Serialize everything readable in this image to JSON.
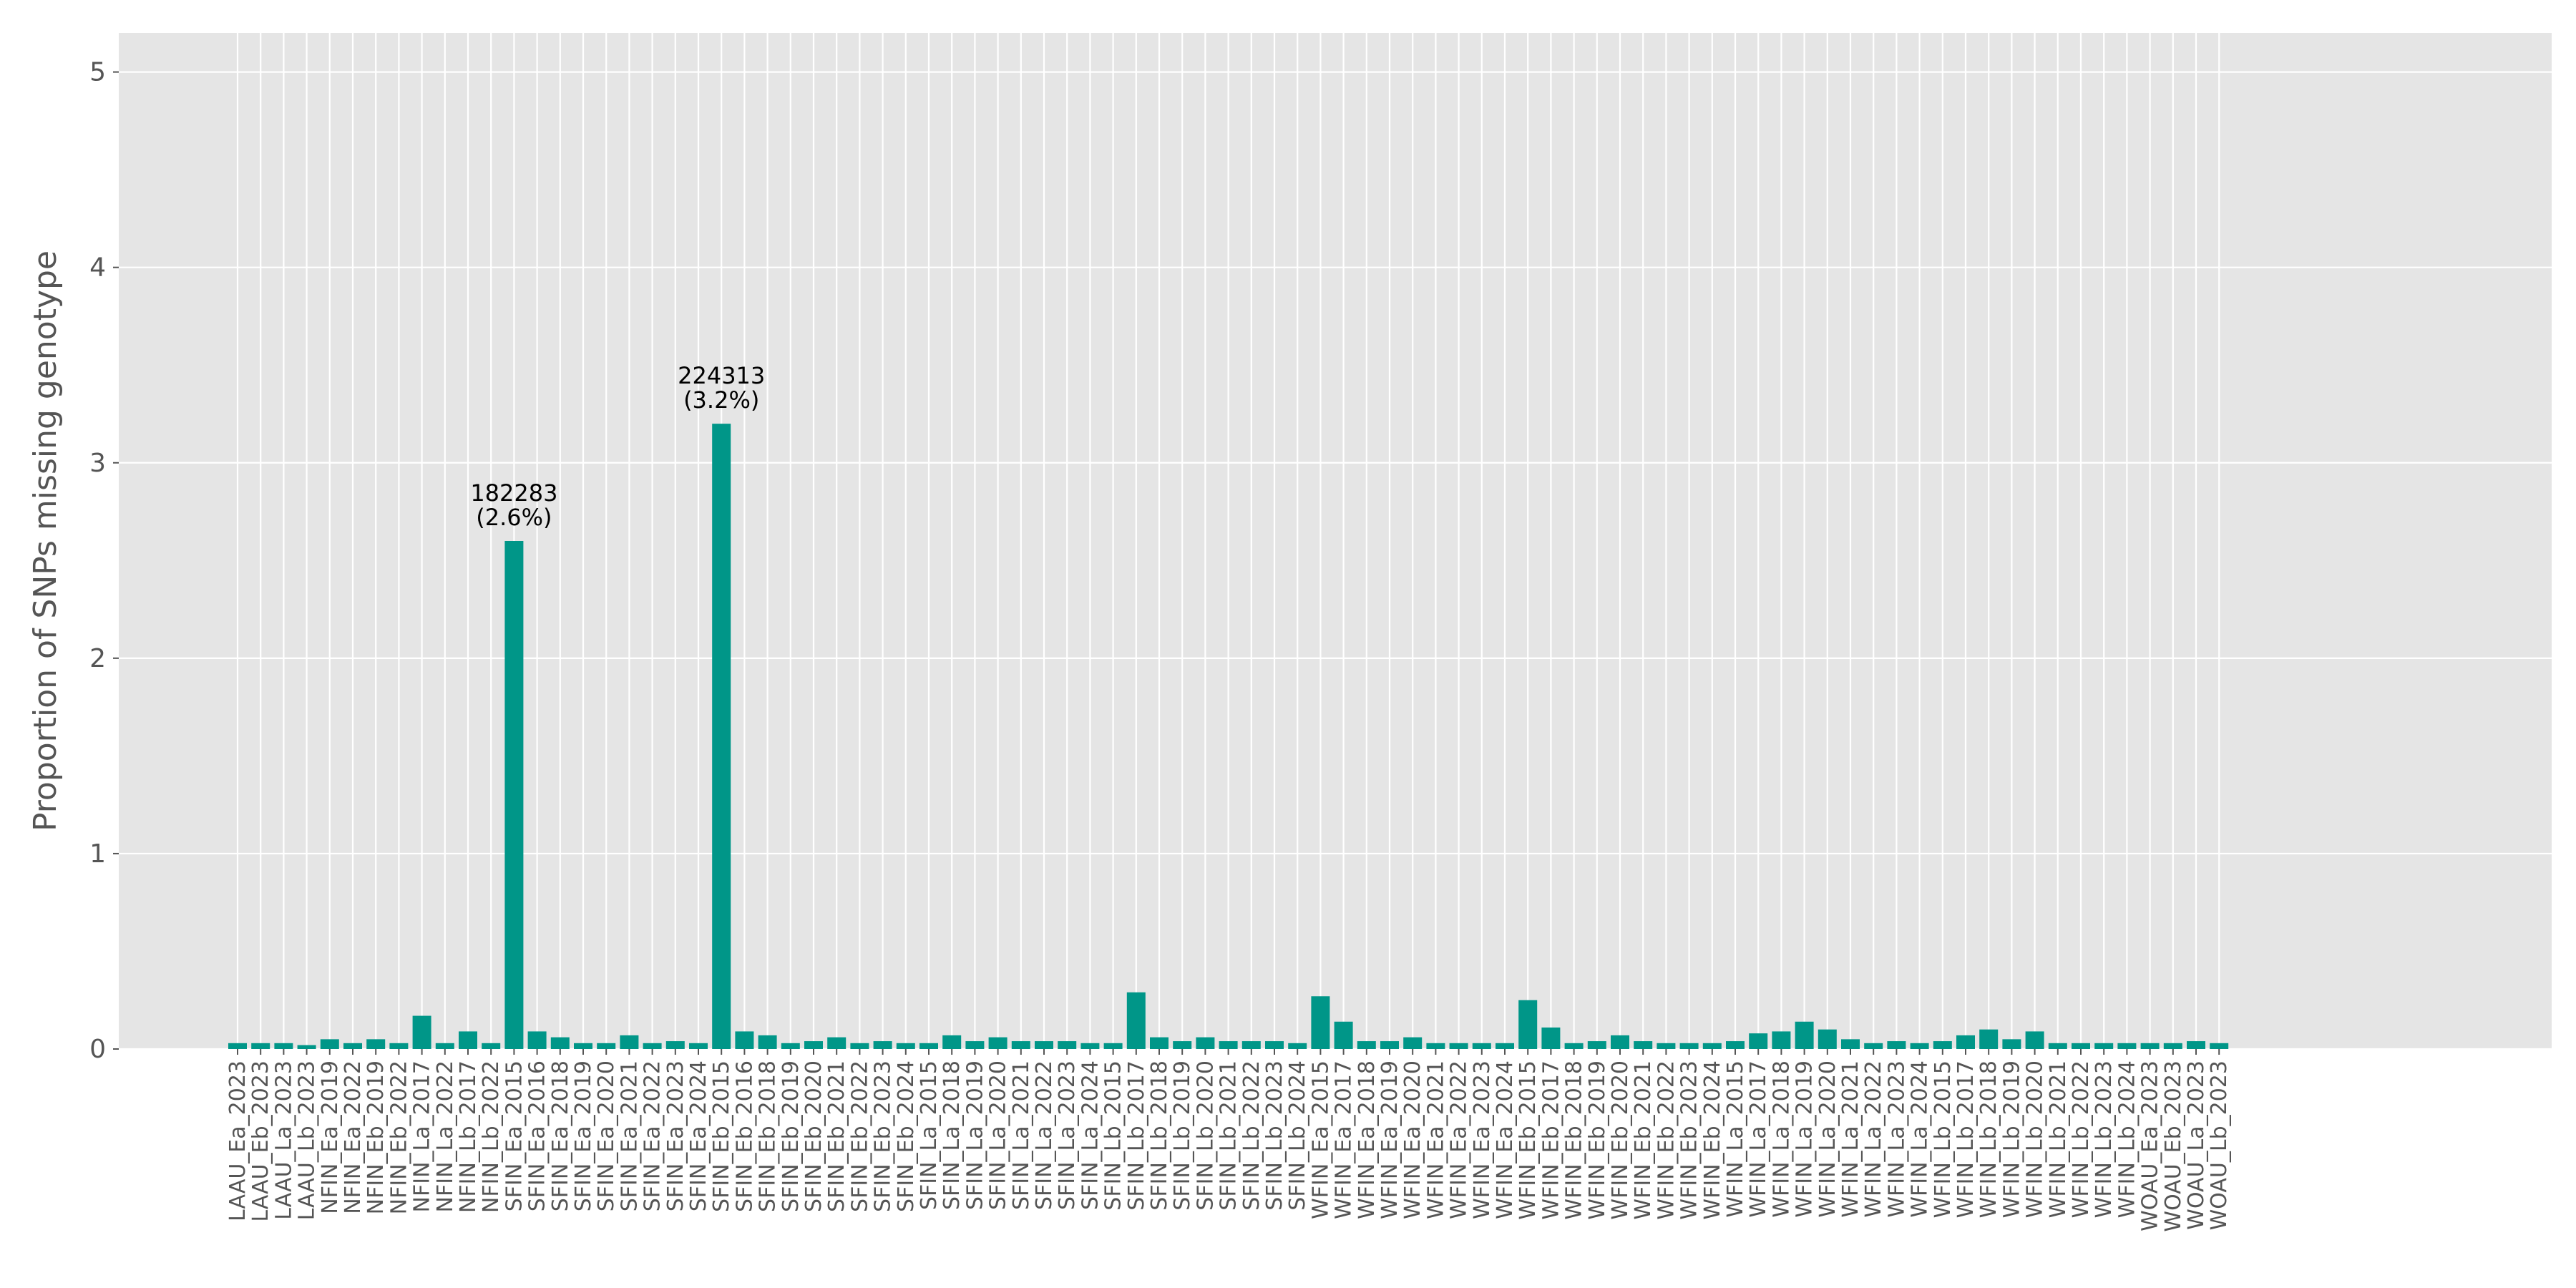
{
  "chart_data": {
    "type": "bar",
    "title": "",
    "xlabel": "",
    "ylabel": "Proportion of SNPs missing genotype",
    "ylim": [
      0,
      5.2
    ],
    "yticks": [
      0,
      1,
      2,
      3,
      4,
      5
    ],
    "ytick_labels": [
      "0",
      "1",
      "2",
      "3",
      "4",
      "5"
    ],
    "grid": true,
    "style": "ggplot",
    "bar_color": "#009688",
    "background_color": "#e5e5e5",
    "grid_color": "#ffffff",
    "categories": [
      "LAAU_Ea_2023",
      "LAAU_Eb_2023",
      "LAAU_La_2023",
      "LAAU_Lb_2023",
      "NFIN_Ea_2019",
      "NFIN_Ea_2022",
      "NFIN_Eb_2019",
      "NFIN_Eb_2022",
      "NFIN_La_2017",
      "NFIN_La_2022",
      "NFIN_Lb_2017",
      "NFIN_Lb_2022",
      "SFIN_Ea_2015",
      "SFIN_Ea_2016",
      "SFIN_Ea_2018",
      "SFIN_Ea_2019",
      "SFIN_Ea_2020",
      "SFIN_Ea_2021",
      "SFIN_Ea_2022",
      "SFIN_Ea_2023",
      "SFIN_Ea_2024",
      "SFIN_Eb_2015",
      "SFIN_Eb_2016",
      "SFIN_Eb_2018",
      "SFIN_Eb_2019",
      "SFIN_Eb_2020",
      "SFIN_Eb_2021",
      "SFIN_Eb_2022",
      "SFIN_Eb_2023",
      "SFIN_Eb_2024",
      "SFIN_La_2015",
      "SFIN_La_2018",
      "SFIN_La_2019",
      "SFIN_La_2020",
      "SFIN_La_2021",
      "SFIN_La_2022",
      "SFIN_La_2023",
      "SFIN_La_2024",
      "SFIN_Lb_2015",
      "SFIN_Lb_2017",
      "SFIN_Lb_2018",
      "SFIN_Lb_2019",
      "SFIN_Lb_2020",
      "SFIN_Lb_2021",
      "SFIN_Lb_2022",
      "SFIN_Lb_2023",
      "SFIN_Lb_2024",
      "WFIN_Ea_2015",
      "WFIN_Ea_2017",
      "WFIN_Ea_2018",
      "WFIN_Ea_2019",
      "WFIN_Ea_2020",
      "WFIN_Ea_2021",
      "WFIN_Ea_2022",
      "WFIN_Ea_2023",
      "WFIN_Ea_2024",
      "WFIN_Eb_2015",
      "WFIN_Eb_2017",
      "WFIN_Eb_2018",
      "WFIN_Eb_2019",
      "WFIN_Eb_2020",
      "WFIN_Eb_2021",
      "WFIN_Eb_2022",
      "WFIN_Eb_2023",
      "WFIN_Eb_2024",
      "WFIN_La_2015",
      "WFIN_La_2017",
      "WFIN_La_2018",
      "WFIN_La_2019",
      "WFIN_La_2020",
      "WFIN_La_2021",
      "WFIN_La_2022",
      "WFIN_La_2023",
      "WFIN_La_2024",
      "WFIN_Lb_2015",
      "WFIN_Lb_2017",
      "WFIN_Lb_2018",
      "WFIN_Lb_2019",
      "WFIN_Lb_2020",
      "WFIN_Lb_2021",
      "WFIN_Lb_2022",
      "WFIN_Lb_2023",
      "WFIN_Lb_2024",
      "WOAU_Ea_2023",
      "WOAU_Eb_2023",
      "WOAU_La_2023",
      "WOAU_Lb_2023"
    ],
    "values": [
      0.03,
      0.03,
      0.03,
      0.02,
      0.05,
      0.03,
      0.05,
      0.03,
      0.17,
      0.03,
      0.09,
      0.03,
      2.6,
      0.09,
      0.06,
      0.03,
      0.03,
      0.07,
      0.03,
      0.04,
      0.03,
      3.2,
      0.09,
      0.07,
      0.03,
      0.04,
      0.06,
      0.03,
      0.04,
      0.03,
      0.03,
      0.07,
      0.04,
      0.06,
      0.04,
      0.04,
      0.04,
      0.03,
      0.03,
      0.29,
      0.06,
      0.04,
      0.06,
      0.04,
      0.04,
      0.04,
      0.03,
      0.27,
      0.14,
      0.04,
      0.04,
      0.06,
      0.03,
      0.03,
      0.03,
      0.03,
      0.25,
      0.11,
      0.03,
      0.04,
      0.07,
      0.04,
      0.03,
      0.03,
      0.03,
      0.04,
      0.08,
      0.09,
      0.14,
      0.1,
      0.05,
      0.03,
      0.04,
      0.03,
      0.04,
      0.07,
      0.1,
      0.05,
      0.09,
      0.03,
      0.03,
      0.03,
      0.03,
      0.03,
      0.03,
      0.04,
      0.03
    ],
    "annotations": [
      {
        "category": "SFIN_Ea_2015",
        "value": 2.6,
        "lines": [
          "182283",
          "(2.6%)"
        ]
      },
      {
        "category": "SFIN_Eb_2015",
        "value": 3.2,
        "lines": [
          "224313",
          "(3.2%)"
        ]
      }
    ]
  }
}
